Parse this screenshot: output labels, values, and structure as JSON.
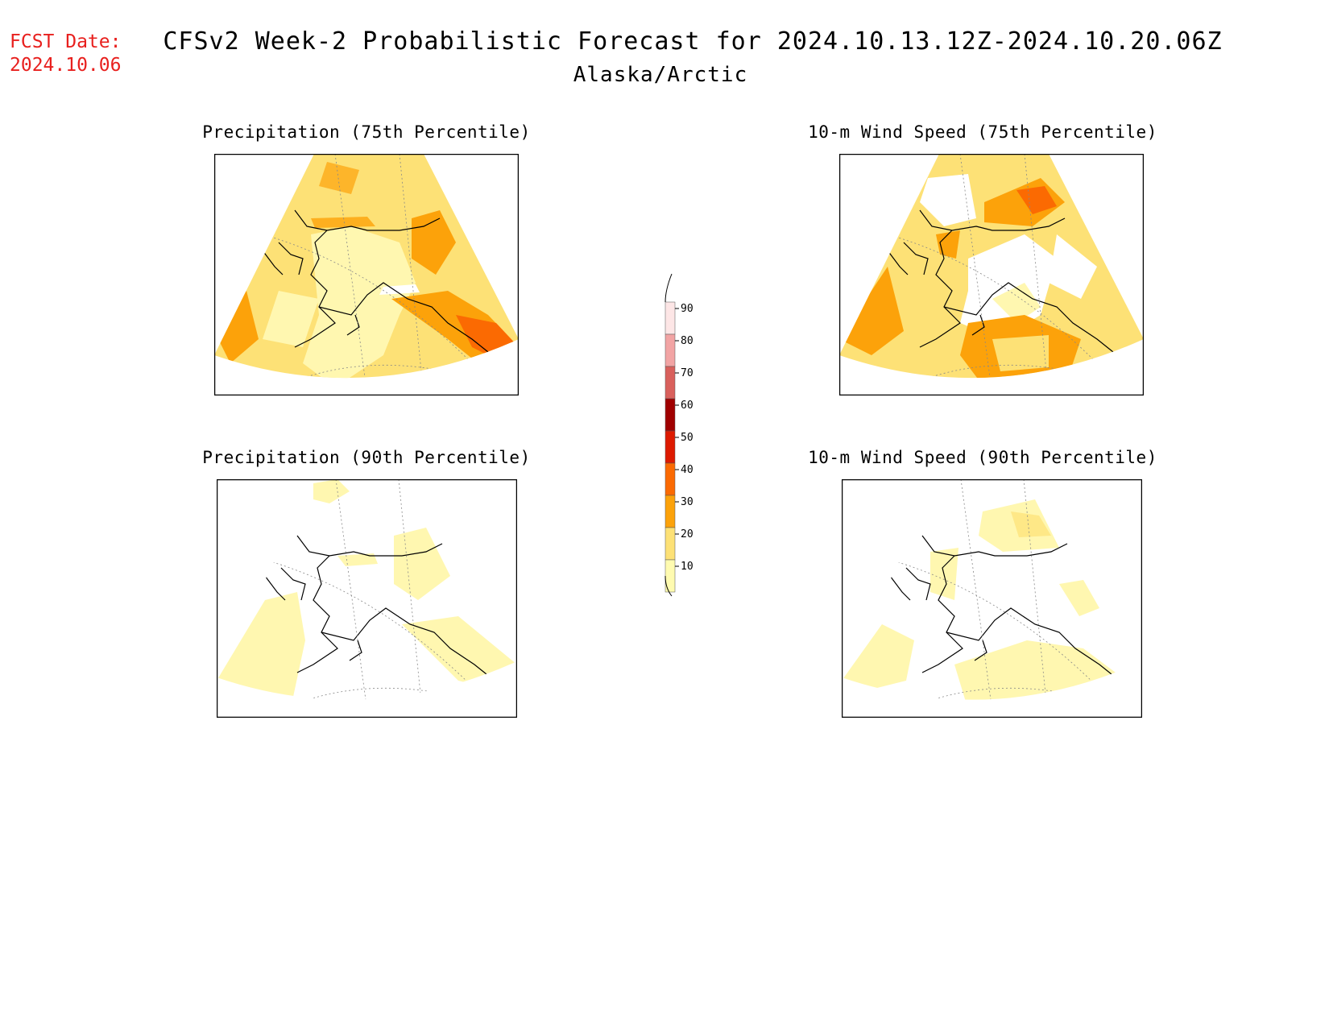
{
  "header": {
    "fcst_label": "FCST Date:",
    "fcst_date": "2024.10.06",
    "title": "CFSv2 Week-2 Probabilistic Forecast for 2024.10.13.12Z-2024.10.20.06Z",
    "subtitle": "Alaska/Arctic"
  },
  "panels": [
    {
      "title": "Precipitation (75th Percentile)",
      "level": "moderate-high"
    },
    {
      "title": "10-m Wind Speed (75th Percentile)",
      "level": "high"
    },
    {
      "title": "Precipitation (90th Percentile)",
      "level": "low"
    },
    {
      "title": "10-m Wind Speed (90th Percentile)",
      "level": "low"
    }
  ],
  "colorbar": {
    "labels": [
      "90",
      "80",
      "70",
      "60",
      "50",
      "40",
      "30",
      "20",
      "10"
    ],
    "colors": [
      "#fde6e6",
      "#f2a4a4",
      "#d9605c",
      "#a00000",
      "#dd1a00",
      "#fb6a02",
      "#fca20a",
      "#fde176",
      "#fffbb0"
    ]
  },
  "colors": {
    "c10": "#fff7b0",
    "c20": "#fde176",
    "c30": "#fca20a",
    "c40": "#fb6a02",
    "fcst_red": "#e8201e"
  }
}
